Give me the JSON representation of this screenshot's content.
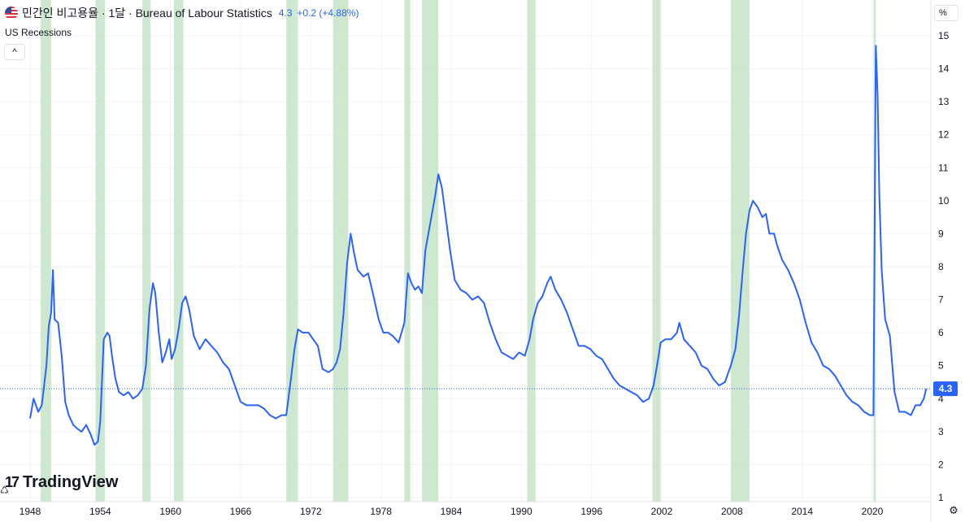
{
  "header": {
    "title": "민간인 비고용율 · 1달 · Bureau of Labour Statistics",
    "last_value": "4.3",
    "change": "+0.2 (+4.88%)",
    "flag_icon": "us-flag-icon"
  },
  "indicator": {
    "label": "US Recessions",
    "collapse_icon": "chevron-up-icon",
    "collapse_glyph": "^"
  },
  "unit_label": "%",
  "branding": {
    "logo_text": "TradingView",
    "logo_mark": "17"
  },
  "colors": {
    "line": "#2962ff",
    "recession": "#c8e6c9",
    "grid": "#f0f3fa",
    "badge": "#2962ff"
  },
  "chart_data": {
    "type": "line",
    "series": [
      {
        "name": "민간인 비고용율",
        "x_unit": "year",
        "points": [
          [
            1948.0,
            3.4
          ],
          [
            1948.3,
            4.0
          ],
          [
            1948.7,
            3.6
          ],
          [
            1949.0,
            3.8
          ],
          [
            1949.4,
            5.0
          ],
          [
            1949.6,
            6.2
          ],
          [
            1949.8,
            6.6
          ],
          [
            1949.95,
            7.9
          ],
          [
            1950.1,
            6.4
          ],
          [
            1950.4,
            6.3
          ],
          [
            1950.7,
            5.3
          ],
          [
            1951.0,
            3.9
          ],
          [
            1951.3,
            3.5
          ],
          [
            1951.7,
            3.2
          ],
          [
            1952.0,
            3.1
          ],
          [
            1952.4,
            3.0
          ],
          [
            1952.8,
            3.2
          ],
          [
            1953.2,
            2.9
          ],
          [
            1953.5,
            2.6
          ],
          [
            1953.8,
            2.7
          ],
          [
            1954.0,
            3.3
          ],
          [
            1954.3,
            5.8
          ],
          [
            1954.6,
            6.0
          ],
          [
            1954.8,
            5.9
          ],
          [
            1955.0,
            5.3
          ],
          [
            1955.3,
            4.6
          ],
          [
            1955.6,
            4.2
          ],
          [
            1956.0,
            4.1
          ],
          [
            1956.4,
            4.2
          ],
          [
            1956.8,
            4.0
          ],
          [
            1957.2,
            4.1
          ],
          [
            1957.6,
            4.3
          ],
          [
            1957.9,
            5.0
          ],
          [
            1958.2,
            6.7
          ],
          [
            1958.5,
            7.5
          ],
          [
            1958.7,
            7.2
          ],
          [
            1959.0,
            6.0
          ],
          [
            1959.3,
            5.1
          ],
          [
            1959.6,
            5.4
          ],
          [
            1959.9,
            5.8
          ],
          [
            1960.1,
            5.2
          ],
          [
            1960.4,
            5.5
          ],
          [
            1960.7,
            6.1
          ],
          [
            1961.0,
            6.9
          ],
          [
            1961.3,
            7.1
          ],
          [
            1961.6,
            6.7
          ],
          [
            1962.0,
            5.9
          ],
          [
            1962.5,
            5.5
          ],
          [
            1963.0,
            5.8
          ],
          [
            1963.5,
            5.6
          ],
          [
            1964.0,
            5.4
          ],
          [
            1964.5,
            5.1
          ],
          [
            1965.0,
            4.9
          ],
          [
            1965.5,
            4.4
          ],
          [
            1966.0,
            3.9
          ],
          [
            1966.5,
            3.8
          ],
          [
            1967.0,
            3.8
          ],
          [
            1967.5,
            3.8
          ],
          [
            1968.0,
            3.7
          ],
          [
            1968.5,
            3.5
          ],
          [
            1969.0,
            3.4
          ],
          [
            1969.5,
            3.5
          ],
          [
            1969.9,
            3.5
          ],
          [
            1970.3,
            4.6
          ],
          [
            1970.6,
            5.5
          ],
          [
            1970.9,
            6.1
          ],
          [
            1971.3,
            6.0
          ],
          [
            1971.8,
            6.0
          ],
          [
            1972.2,
            5.8
          ],
          [
            1972.6,
            5.6
          ],
          [
            1973.0,
            4.9
          ],
          [
            1973.5,
            4.8
          ],
          [
            1973.9,
            4.9
          ],
          [
            1974.2,
            5.1
          ],
          [
            1974.5,
            5.5
          ],
          [
            1974.8,
            6.6
          ],
          [
            1975.1,
            8.1
          ],
          [
            1975.4,
            9.0
          ],
          [
            1975.7,
            8.4
          ],
          [
            1976.0,
            7.9
          ],
          [
            1976.5,
            7.7
          ],
          [
            1976.9,
            7.8
          ],
          [
            1977.3,
            7.2
          ],
          [
            1977.8,
            6.4
          ],
          [
            1978.2,
            6.0
          ],
          [
            1978.6,
            6.0
          ],
          [
            1979.0,
            5.9
          ],
          [
            1979.5,
            5.7
          ],
          [
            1980.0,
            6.3
          ],
          [
            1980.3,
            7.8
          ],
          [
            1980.6,
            7.5
          ],
          [
            1980.9,
            7.3
          ],
          [
            1981.2,
            7.4
          ],
          [
            1981.5,
            7.2
          ],
          [
            1981.8,
            8.5
          ],
          [
            1982.2,
            9.3
          ],
          [
            1982.6,
            10.1
          ],
          [
            1982.9,
            10.8
          ],
          [
            1983.2,
            10.4
          ],
          [
            1983.5,
            9.6
          ],
          [
            1983.9,
            8.5
          ],
          [
            1984.3,
            7.6
          ],
          [
            1984.8,
            7.3
          ],
          [
            1985.3,
            7.2
          ],
          [
            1985.8,
            7.0
          ],
          [
            1986.3,
            7.1
          ],
          [
            1986.8,
            6.9
          ],
          [
            1987.3,
            6.3
          ],
          [
            1987.8,
            5.8
          ],
          [
            1988.3,
            5.4
          ],
          [
            1988.8,
            5.3
          ],
          [
            1989.3,
            5.2
          ],
          [
            1989.8,
            5.4
          ],
          [
            1990.3,
            5.3
          ],
          [
            1990.7,
            5.8
          ],
          [
            1991.0,
            6.4
          ],
          [
            1991.4,
            6.9
          ],
          [
            1991.8,
            7.1
          ],
          [
            1992.2,
            7.5
          ],
          [
            1992.5,
            7.7
          ],
          [
            1992.9,
            7.3
          ],
          [
            1993.4,
            7.0
          ],
          [
            1993.9,
            6.6
          ],
          [
            1994.4,
            6.1
          ],
          [
            1994.9,
            5.6
          ],
          [
            1995.4,
            5.6
          ],
          [
            1995.9,
            5.5
          ],
          [
            1996.4,
            5.3
          ],
          [
            1996.9,
            5.2
          ],
          [
            1997.4,
            4.9
          ],
          [
            1997.9,
            4.6
          ],
          [
            1998.4,
            4.4
          ],
          [
            1998.9,
            4.3
          ],
          [
            1999.4,
            4.2
          ],
          [
            1999.9,
            4.1
          ],
          [
            2000.4,
            3.9
          ],
          [
            2000.9,
            4.0
          ],
          [
            2001.3,
            4.4
          ],
          [
            2001.6,
            5.0
          ],
          [
            2001.9,
            5.7
          ],
          [
            2002.3,
            5.8
          ],
          [
            2002.8,
            5.8
          ],
          [
            2003.3,
            6.0
          ],
          [
            2003.5,
            6.3
          ],
          [
            2003.9,
            5.8
          ],
          [
            2004.4,
            5.6
          ],
          [
            2004.9,
            5.4
          ],
          [
            2005.4,
            5.0
          ],
          [
            2005.9,
            4.9
          ],
          [
            2006.4,
            4.6
          ],
          [
            2006.9,
            4.4
          ],
          [
            2007.4,
            4.5
          ],
          [
            2007.9,
            5.0
          ],
          [
            2008.3,
            5.5
          ],
          [
            2008.6,
            6.5
          ],
          [
            2008.9,
            7.8
          ],
          [
            2009.2,
            9.0
          ],
          [
            2009.5,
            9.7
          ],
          [
            2009.8,
            10.0
          ],
          [
            2010.2,
            9.8
          ],
          [
            2010.6,
            9.5
          ],
          [
            2010.9,
            9.6
          ],
          [
            2011.2,
            9.0
          ],
          [
            2011.6,
            9.0
          ],
          [
            2011.9,
            8.6
          ],
          [
            2012.3,
            8.2
          ],
          [
            2012.8,
            7.9
          ],
          [
            2013.3,
            7.5
          ],
          [
            2013.8,
            7.0
          ],
          [
            2014.3,
            6.3
          ],
          [
            2014.8,
            5.7
          ],
          [
            2015.3,
            5.4
          ],
          [
            2015.8,
            5.0
          ],
          [
            2016.3,
            4.9
          ],
          [
            2016.8,
            4.7
          ],
          [
            2017.3,
            4.4
          ],
          [
            2017.8,
            4.1
          ],
          [
            2018.3,
            3.9
          ],
          [
            2018.8,
            3.8
          ],
          [
            2019.3,
            3.6
          ],
          [
            2019.8,
            3.5
          ],
          [
            2020.1,
            3.5
          ],
          [
            2020.3,
            14.7
          ],
          [
            2020.45,
            13.2
          ],
          [
            2020.6,
            10.2
          ],
          [
            2020.8,
            7.9
          ],
          [
            2021.1,
            6.4
          ],
          [
            2021.5,
            5.9
          ],
          [
            2021.9,
            4.2
          ],
          [
            2022.3,
            3.6
          ],
          [
            2022.8,
            3.6
          ],
          [
            2023.3,
            3.5
          ],
          [
            2023.7,
            3.8
          ],
          [
            2024.1,
            3.8
          ],
          [
            2024.4,
            4.0
          ],
          [
            2024.6,
            4.3
          ]
        ]
      }
    ],
    "recessions": [
      [
        1948.9,
        1949.8
      ],
      [
        1953.6,
        1954.4
      ],
      [
        1957.6,
        1958.3
      ],
      [
        1960.3,
        1961.1
      ],
      [
        1969.9,
        1970.9
      ],
      [
        1973.9,
        1975.2
      ],
      [
        1980.0,
        1980.5
      ],
      [
        1981.5,
        1982.9
      ],
      [
        1990.5,
        1991.2
      ],
      [
        2001.2,
        2001.9
      ],
      [
        2007.9,
        2009.5
      ],
      [
        2020.1,
        2020.3
      ]
    ],
    "x_ticks": [
      "1948",
      "1954",
      "1960",
      "1966",
      "1972",
      "1978",
      "1984",
      "1990",
      "1996",
      "2002",
      "2008",
      "2014",
      "2020"
    ],
    "y_ticks": [
      "1",
      "2",
      "3",
      "4",
      "5",
      "6",
      "7",
      "8",
      "9",
      "10",
      "11",
      "12",
      "13",
      "14",
      "15"
    ],
    "xlim": [
      1947.9,
      2025.7
    ],
    "ylim": [
      1,
      15.5
    ],
    "last_value": 4.3,
    "last_label": "4.3",
    "grid": true
  }
}
